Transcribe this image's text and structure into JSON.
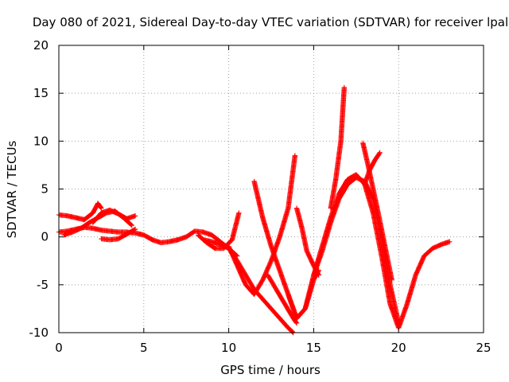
{
  "chart_data": {
    "type": "scatter",
    "title": "Day 080 of 2021, Sidereal Day-to-day VTEC variation (SDTVAR) for receiver lpal",
    "xlabel": "GPS time / hours",
    "ylabel": "SDTVAR / TECUs",
    "xlim": [
      0,
      25
    ],
    "ylim": [
      -10,
      20
    ],
    "xticks": [
      "0",
      "5",
      "10",
      "15",
      "20",
      "25"
    ],
    "yticks": [
      "-10",
      "-5",
      "0",
      "5",
      "10",
      "15",
      "20"
    ],
    "grid": true,
    "marker": "plus",
    "series": [
      {
        "color": "#ff0000",
        "x": [
          0,
          0.5,
          1,
          1.5,
          2,
          2.5,
          3,
          3.5,
          4,
          4.5,
          5,
          5.5,
          6,
          6.5,
          7,
          7.5,
          8,
          8.5,
          9,
          9.5,
          10,
          10.5
        ],
        "y": [
          0.5,
          0.6,
          0.8,
          1.0,
          0.9,
          0.7,
          0.6,
          0.5,
          0.5,
          0.4,
          0.2,
          -0.3,
          -0.6,
          -0.5,
          -0.3,
          0.0,
          0.6,
          0.5,
          0.2,
          -0.5,
          -1.2,
          -2.0
        ]
      },
      {
        "color": "#ff0000",
        "x": [
          0,
          0.5,
          1,
          1.5,
          2,
          2.3,
          2.5
        ],
        "y": [
          2.3,
          2.2,
          2.0,
          1.8,
          2.5,
          3.5,
          3.0
        ]
      },
      {
        "color": "#ff0000",
        "x": [
          0.3,
          0.8,
          1.3,
          1.8,
          2.3,
          2.8,
          3.3,
          3.8,
          4.3
        ],
        "y": [
          0.2,
          0.5,
          0.9,
          1.5,
          2.0,
          2.5,
          2.7,
          2.0,
          1.2
        ]
      },
      {
        "color": "#ff0000",
        "x": [
          2.5,
          3,
          3.5,
          4,
          4.5
        ],
        "y": [
          -0.2,
          -0.3,
          -0.2,
          0.3,
          0.8
        ]
      },
      {
        "color": "#ff0000",
        "x": [
          2.0,
          2.5,
          3.0,
          3.5,
          4.0,
          4.5
        ],
        "y": [
          1.5,
          2.5,
          2.8,
          2.4,
          1.9,
          2.2
        ]
      },
      {
        "color": "#ff0000",
        "x": [
          8.2,
          8.7,
          9.2,
          9.7,
          10.2,
          10.6
        ],
        "y": [
          0.2,
          -0.6,
          -1.2,
          -1.2,
          -0.3,
          2.5
        ]
      },
      {
        "color": "#ff0000",
        "x": [
          8.5,
          9,
          9.5,
          10,
          10.5,
          11,
          11.5,
          12,
          12.5,
          13,
          13.5,
          13.8
        ],
        "y": [
          -0.3,
          -0.5,
          -0.8,
          -1.2,
          -2.5,
          -4.0,
          -5.5,
          -6.5,
          -7.5,
          -8.5,
          -9.5,
          -10.0
        ]
      },
      {
        "color": "#ff0000",
        "x": [
          10.0,
          10.5,
          11.0,
          11.5,
          12.0,
          12.5,
          13.0,
          13.5,
          13.9
        ],
        "y": [
          -1.0,
          -3.0,
          -5.0,
          -6.0,
          -4.5,
          -2.5,
          0.0,
          3.0,
          8.5
        ]
      },
      {
        "color": "#ff0000",
        "x": [
          11.5,
          12.0,
          12.5,
          13.0,
          13.5,
          14.0,
          14.5,
          15.0,
          15.3
        ],
        "y": [
          5.8,
          2.0,
          -1.0,
          -3.5,
          -6.0,
          -8.5,
          -7.5,
          -4.5,
          -3.5
        ]
      },
      {
        "color": "#ff0000",
        "x": [
          12.3,
          12.8,
          13.3,
          13.8,
          14.0
        ],
        "y": [
          -4.0,
          -5.5,
          -7.0,
          -8.5,
          -9.0
        ]
      },
      {
        "color": "#ff0000",
        "x": [
          14.0,
          14.3,
          14.6,
          15.0,
          15.3
        ],
        "y": [
          3.0,
          1.0,
          -1.5,
          -3.0,
          -4.0
        ]
      },
      {
        "color": "#ff0000",
        "x": [
          13.5,
          14,
          14.5,
          15,
          15.5,
          16,
          16.5,
          17,
          17.5,
          18,
          18.5,
          19,
          19.5,
          20,
          20.5,
          21,
          21.5,
          22,
          22.5,
          23
        ],
        "y": [
          -6.0,
          -8.5,
          -7.5,
          -4.0,
          -1.0,
          2.0,
          4.5,
          6.0,
          6.5,
          5.5,
          2.5,
          -2.0,
          -7.0,
          -9.5,
          -7.0,
          -4.0,
          -2.0,
          -1.2,
          -0.8,
          -0.5
        ]
      },
      {
        "color": "#ff0000",
        "x": [
          15.0,
          15.5,
          16.0,
          16.5,
          17.0,
          17.5,
          18.0,
          18.5,
          19.0,
          19.5,
          20.0
        ],
        "y": [
          -4.0,
          -1.5,
          1.5,
          4.0,
          5.5,
          6.2,
          5.8,
          4.0,
          0.0,
          -5.0,
          -9.0
        ]
      },
      {
        "color": "#ff0000",
        "x": [
          16.0,
          16.3,
          16.6,
          16.8
        ],
        "y": [
          3.0,
          6.0,
          10.0,
          15.6
        ]
      },
      {
        "color": "#ff0000",
        "x": [
          17.9,
          18.2,
          18.5,
          18.8,
          19.2,
          19.6
        ],
        "y": [
          9.8,
          7.5,
          5.0,
          2.5,
          -1.0,
          -4.5
        ]
      },
      {
        "color": "#ff0000",
        "x": [
          18.0,
          18.3,
          18.6,
          18.9
        ],
        "y": [
          5.5,
          7.0,
          8.0,
          8.8
        ]
      }
    ]
  }
}
